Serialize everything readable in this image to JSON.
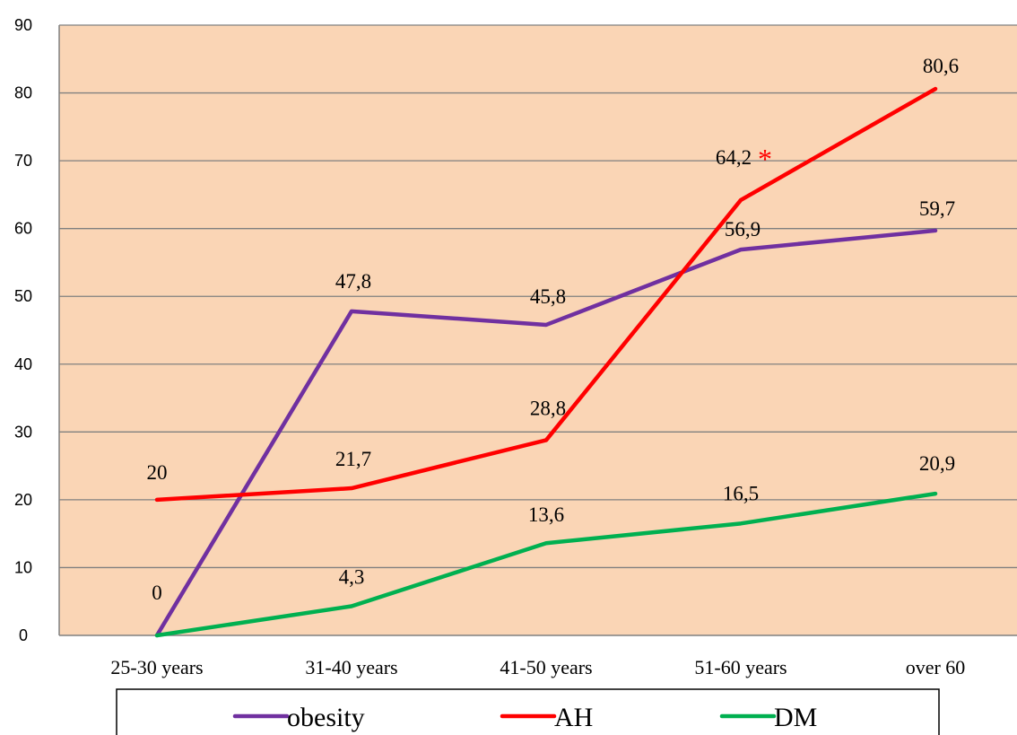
{
  "chart_data": {
    "type": "line",
    "categories": [
      "25-30 years",
      "31-40 years",
      "41-50 years",
      "51-60 years",
      "over 60"
    ],
    "series": [
      {
        "name": "obesity",
        "color": "#7030a0",
        "values": [
          0,
          47.8,
          45.8,
          56.9,
          59.7
        ],
        "labels": [
          "0",
          "47,8",
          "45,8",
          "56,9",
          "59,7"
        ]
      },
      {
        "name": "AH",
        "color": "#ff0000",
        "values": [
          20,
          21.7,
          28.8,
          64.2,
          80.6
        ],
        "labels": [
          "20",
          "21,7",
          "28,8",
          "64,2",
          "80,6"
        ]
      },
      {
        "name": "DM",
        "color": "#00b050",
        "values": [
          0,
          4.3,
          13.6,
          16.5,
          20.9
        ],
        "labels": [
          "",
          "4,3",
          "13,6",
          "16,5",
          "20,9"
        ]
      }
    ],
    "ylim": [
      0,
      90
    ],
    "yticks": [
      0,
      10,
      20,
      30,
      40,
      50,
      60,
      70,
      80,
      90
    ],
    "grid": true,
    "plot_background": "#fad5b5",
    "gridline_color": "#808080",
    "legend_position": "bottom",
    "annotation": {
      "text": "*",
      "color": "#ff0000",
      "series": "AH",
      "category": "51-60 years"
    },
    "title": "",
    "xlabel": "",
    "ylabel": ""
  }
}
